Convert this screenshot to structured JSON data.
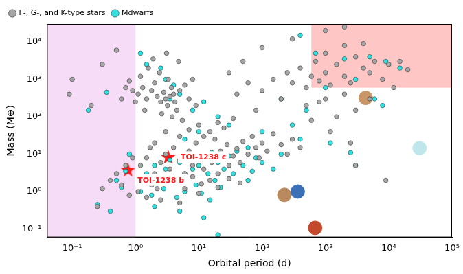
{
  "chart_data": {
    "type": "scatter",
    "x_label": "Orbital period (d)",
    "y_label": "Mass (M⊕)",
    "log": true,
    "grid": false,
    "legend": "top-left",
    "xlim": [
      0.04,
      100000
    ],
    "ylim": [
      0.06,
      30000
    ],
    "xticks": [
      {
        "value": 0.1,
        "label": "10⁻¹"
      },
      {
        "value": 1,
        "label": "10⁰"
      },
      {
        "value": 10,
        "label": "10¹"
      },
      {
        "value": 100,
        "label": "10²"
      },
      {
        "value": 1000,
        "label": "10³"
      },
      {
        "value": 10000,
        "label": "10⁴"
      },
      {
        "value": 100000,
        "label": "10⁵"
      }
    ],
    "yticks": [
      {
        "value": 0.1,
        "label": "10⁻¹"
      },
      {
        "value": 1,
        "label": "10⁰"
      },
      {
        "value": 10,
        "label": "10¹"
      },
      {
        "value": 100,
        "label": "10²"
      },
      {
        "value": 1000,
        "label": "10³"
      },
      {
        "value": 10000,
        "label": "10⁴"
      }
    ],
    "shaded_regions": [
      {
        "x": [
          0.04,
          1
        ],
        "y": [
          0.06,
          30000
        ],
        "color": "#f7dcf7"
      },
      {
        "x": [
          600,
          100000
        ],
        "y": [
          600,
          30000
        ],
        "color": "#ffc6c6"
      }
    ],
    "series": [
      {
        "name": "F-, G-, and K-type stars",
        "color": "#a6a6a6",
        "marker": "circle",
        "x": [
          1.1,
          1.3,
          1.5,
          1.8,
          2.0,
          2.2,
          2.5,
          2.8,
          3.0,
          3.2,
          3.5,
          3.7,
          4.0,
          4.2,
          4.5,
          5.0,
          1.2,
          1.6,
          2.4,
          3.3,
          4.8,
          6,
          7,
          8,
          9,
          1.0,
          0.9,
          0.8,
          0.7,
          1.4,
          2.6,
          3.8,
          5.5,
          0.6,
          1.9,
          3.1,
          1.2,
          1.5,
          2,
          2.5,
          3,
          3.5,
          4,
          5,
          6,
          7,
          8,
          9,
          10,
          12,
          14,
          16,
          18,
          20,
          22,
          25,
          28,
          30,
          35,
          40,
          45,
          50,
          60,
          70,
          80,
          90,
          100,
          120,
          150,
          200,
          250,
          300,
          400,
          1.3,
          1.8,
          2.2,
          3.2,
          4.5,
          6,
          8,
          11,
          15,
          20,
          30,
          45,
          5,
          7,
          10,
          15,
          20,
          25,
          35,
          12,
          3,
          2,
          1.7,
          0.9,
          0.7,
          0.5,
          0.4,
          0.6,
          0.8,
          1.1,
          1.5,
          2.5,
          5,
          10,
          0.3,
          0.25,
          100,
          150,
          200,
          250,
          300,
          400,
          500,
          600,
          700,
          800,
          1000,
          1200,
          1500,
          2000,
          2500,
          3000,
          4000,
          5000,
          6000,
          8000,
          10000,
          15000,
          20000,
          1000,
          2000,
          500,
          1000,
          2000,
          3000,
          1500,
          800,
          600,
          1200,
          2500,
          1000,
          300,
          100,
          50,
          30,
          60,
          40,
          80,
          5000,
          12000,
          3000,
          9000,
          0.09,
          0.1,
          0.3,
          0.5,
          0.2,
          2000,
          4000
        ],
        "values": [
          400,
          600,
          300,
          500,
          800,
          350,
          250,
          450,
          300,
          200,
          350,
          600,
          400,
          250,
          150,
          500,
          1200,
          2000,
          1500,
          1000,
          3000,
          700,
          300,
          1000,
          200,
          250,
          500,
          900,
          600,
          150,
          120,
          100,
          80,
          300,
          3500,
          5000,
          5,
          8,
          3,
          6,
          10,
          4,
          15,
          7,
          3,
          12,
          5,
          20,
          8,
          4,
          10,
          6,
          25,
          3,
          12,
          7,
          18,
          5,
          9,
          14,
          6,
          22,
          10,
          30,
          15,
          8,
          20,
          12,
          35,
          18,
          10,
          25,
          15,
          2,
          1.5,
          1.2,
          2,
          1.8,
          1.2,
          2.5,
          1.6,
          2,
          1.3,
          2.2,
          1.7,
          30,
          45,
          60,
          40,
          70,
          50,
          90,
          30,
          40,
          20,
          15,
          8,
          5,
          3,
          2,
          1.5,
          0.8,
          1,
          0.7,
          0.6,
          0.5,
          0.9,
          1.2,
          0.4,
          500,
          1000,
          300,
          1500,
          800,
          2000,
          600,
          1200,
          3000,
          900,
          1500,
          700,
          2500,
          1200,
          800,
          4000,
          2000,
          1500,
          3000,
          1000,
          2500,
          3000,
          1800,
          5000,
          8000,
          200,
          300,
          400,
          150,
          100,
          250,
          80,
          40,
          20,
          20000,
          12000,
          7000,
          3000,
          1500,
          800,
          400,
          150,
          300,
          600,
          5,
          2,
          400,
          1000,
          2500,
          6000,
          200,
          25000,
          9000
        ]
      },
      {
        "name": "Mdwarfs",
        "color": "#33e0e0",
        "marker": "circle",
        "x": [
          1.5,
          2,
          2.5,
          3,
          3.5,
          4,
          5,
          6,
          7,
          8,
          9,
          10,
          12,
          14,
          16,
          18,
          20,
          25,
          30,
          35,
          40,
          50,
          60,
          70,
          80,
          100,
          1.2,
          1.8,
          2.8,
          4.5,
          6,
          11,
          15,
          22,
          2,
          5,
          12,
          20,
          0.4,
          0.25,
          0.5,
          0.6,
          0.8,
          0.7,
          0.18,
          0.35,
          1.2,
          1.5,
          2.5,
          3,
          4,
          5,
          3.5,
          8,
          12,
          20,
          30,
          10,
          6,
          100,
          200,
          300,
          500,
          1000,
          2000,
          3000,
          5000,
          6000,
          8000,
          400,
          200,
          3000,
          2500,
          9000,
          15000,
          400,
          700,
          1200,
          60,
          150
        ],
        "values": [
          3,
          5,
          2,
          4,
          7,
          2.5,
          6,
          3,
          9,
          4,
          1.5,
          5,
          8,
          3,
          11,
          2,
          6,
          4,
          9,
          3,
          12,
          5,
          15,
          3.5,
          8,
          6,
          1,
          0.8,
          1.2,
          0.7,
          1,
          0.9,
          0.6,
          1.3,
          0.4,
          0.3,
          0.2,
          0.07,
          0.3,
          0.45,
          2,
          1.3,
          10,
          3.5,
          150,
          450,
          5000,
          2500,
          2000,
          1000,
          700,
          400,
          300,
          150,
          250,
          100,
          60,
          40,
          25,
          40,
          300,
          60,
          150,
          600,
          3500,
          1000,
          4000,
          300,
          200,
          25,
          10,
          5,
          11,
          3000,
          2000,
          15000,
          5000,
          20,
          2,
          4
        ]
      }
    ],
    "solar_system": {
      "x": [
        225,
        365,
        687,
        4333,
        30687
      ],
      "values": [
        0.815,
        1,
        0.107,
        318,
        14.5
      ],
      "colors": [
        "#b98a5e",
        "#3b6fb6",
        "#c4482a",
        "#c99668",
        "#bfe6ea"
      ]
    },
    "highlights": {
      "labels": [
        "TOI-1238 b",
        "TOI-1238 c"
      ],
      "x": [
        0.76,
        3.29
      ],
      "values": [
        3.76,
        8.32
      ],
      "color": "#ff1a1a",
      "marker": "star"
    }
  }
}
